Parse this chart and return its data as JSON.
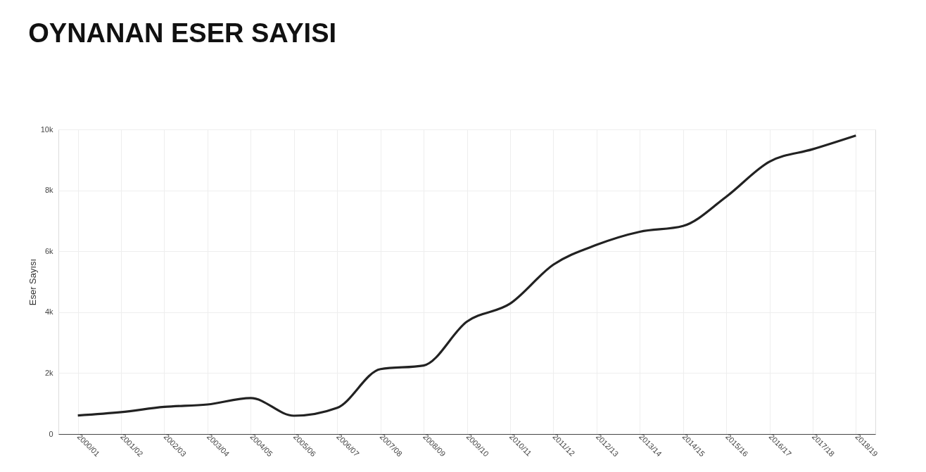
{
  "chart_data": {
    "type": "line",
    "title": "OYNANAN ESER SAYISI",
    "ylabel": "Eser Sayısı",
    "categories": [
      "2000/01",
      "2001/02",
      "2002/03",
      "2003/04",
      "2004/05",
      "2005/06",
      "2006/07",
      "2007/08",
      "2008/09",
      "2009/10",
      "2010/11",
      "2011/12",
      "2012/13",
      "2013/14",
      "2014/15",
      "2015/16",
      "2016/17",
      "2017/18",
      "2018/19"
    ],
    "series": [
      {
        "color": "#222222",
        "values": [
          610,
          720,
          890,
          970,
          1180,
          600,
          860,
          2130,
          2250,
          3690,
          4280,
          5560,
          6210,
          6640,
          6830,
          7790,
          8940,
          9350,
          9800
        ]
      }
    ],
    "ylim": [
      0,
      10000
    ],
    "yticks": [
      0,
      {
        "value": 2000,
        "label": "2k"
      },
      {
        "value": 4000,
        "label": "4k"
      },
      {
        "value": 6000,
        "label": "6k"
      },
      {
        "value": 8000,
        "label": "8k"
      },
      {
        "value": 10000,
        "label": "10k"
      }
    ],
    "grid": true,
    "marker": "none",
    "line_style": "solid"
  }
}
